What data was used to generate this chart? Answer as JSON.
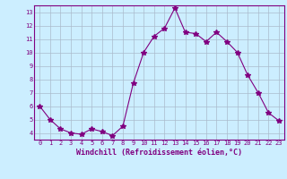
{
  "x": [
    0,
    1,
    2,
    3,
    4,
    5,
    6,
    7,
    8,
    9,
    10,
    11,
    12,
    13,
    14,
    15,
    16,
    17,
    18,
    19,
    20,
    21,
    22,
    23
  ],
  "y": [
    6.0,
    5.0,
    4.3,
    4.0,
    3.9,
    4.3,
    4.1,
    3.8,
    4.5,
    7.7,
    10.0,
    11.2,
    11.8,
    13.3,
    11.5,
    11.4,
    10.8,
    11.5,
    10.8,
    10.0,
    8.3,
    7.0,
    5.5,
    4.9
  ],
  "line_color": "#800080",
  "marker": "*",
  "marker_size": 4,
  "bg_color": "#cceeff",
  "grid_color": "#aabbcc",
  "xlabel": "Windchill (Refroidissement éolien,°C)",
  "xlim": [
    -0.5,
    23.5
  ],
  "ylim": [
    3.5,
    13.5
  ],
  "yticks": [
    4,
    5,
    6,
    7,
    8,
    9,
    10,
    11,
    12,
    13
  ],
  "xticks": [
    0,
    1,
    2,
    3,
    4,
    5,
    6,
    7,
    8,
    9,
    10,
    11,
    12,
    13,
    14,
    15,
    16,
    17,
    18,
    19,
    20,
    21,
    22,
    23
  ],
  "label_color": "#800080",
  "axis_color": "#800080",
  "tick_fontsize": 5.0,
  "xlabel_fontsize": 6.0
}
